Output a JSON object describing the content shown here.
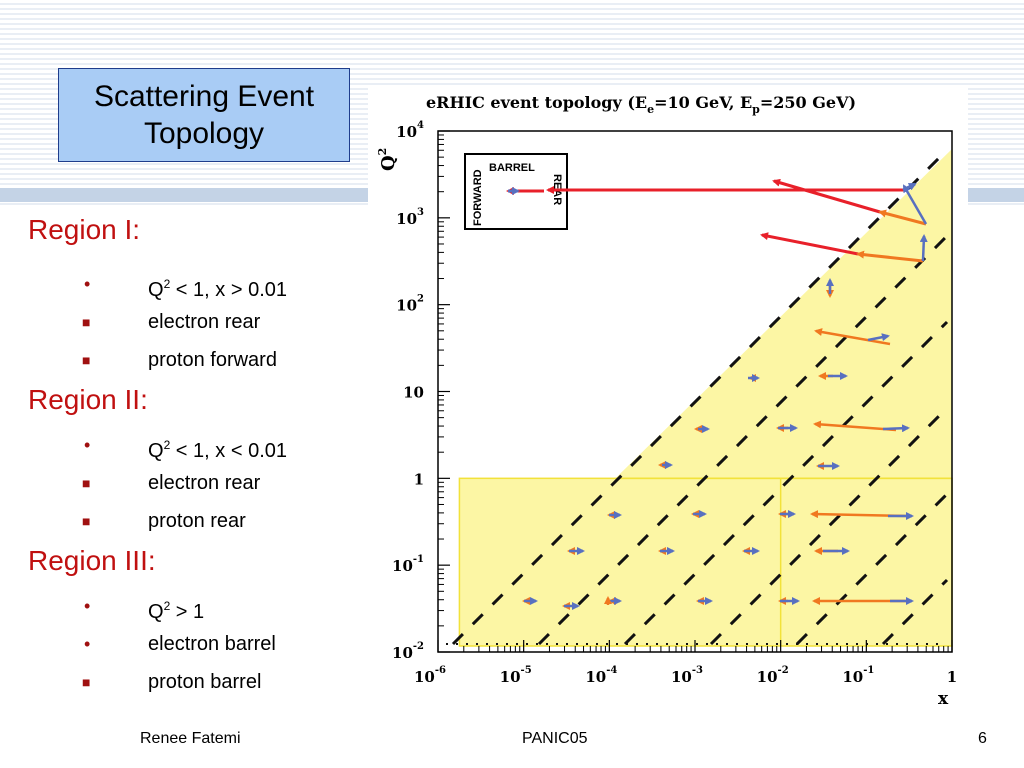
{
  "slide": {
    "title_line1": "Scattering Event",
    "title_line2": "Topology",
    "regions": [
      {
        "heading": "Region I:",
        "bullets": [
          {
            "type": "dot",
            "q": "Q",
            "sup": "2",
            "rest": " < 1,  x > 0.01"
          },
          {
            "type": "square",
            "text": "electron rear"
          },
          {
            "type": "square",
            "text": "proton forward"
          }
        ]
      },
      {
        "heading": "Region II:",
        "bullets": [
          {
            "type": "dot",
            "q": "Q",
            "sup": "2",
            "rest": " < 1, x < 0.01"
          },
          {
            "type": "square",
            "text": "electron rear"
          },
          {
            "type": "square",
            "text": "proton rear"
          }
        ]
      },
      {
        "heading": "Region III:",
        "bullets": [
          {
            "type": "dot",
            "q": "Q",
            "sup": "2",
            "rest": " > 1"
          },
          {
            "type": "dot",
            "text": "electron barrel"
          },
          {
            "type": "square",
            "text": "proton barrel"
          }
        ]
      }
    ],
    "bullet_marks": {
      "dot": "•",
      "square": "■"
    },
    "footer": {
      "author": "Renee Fatemi",
      "conference": "PANIC05",
      "page": "6"
    }
  },
  "figure": {
    "title_pre": "eRHIC event topology (E",
    "title_sub_e": "e",
    "title_mid": "=10 GeV, E",
    "title_sub_p": "p",
    "title_post": "=250 GeV)",
    "y_axis_label_base": "Q",
    "y_axis_label_sup": "2",
    "x_axis_label": "x",
    "y_ticks": [
      {
        "base": "10",
        "exp": "4"
      },
      {
        "base": "10",
        "exp": "3"
      },
      {
        "base": "10",
        "exp": "2"
      },
      {
        "base": "10",
        "exp": ""
      },
      {
        "base": "1",
        "exp": ""
      },
      {
        "base": "10",
        "exp": "-1"
      },
      {
        "base": "10",
        "exp": "-2"
      }
    ],
    "x_ticks": [
      {
        "base": "10",
        "exp": "-6"
      },
      {
        "base": "10",
        "exp": "-5"
      },
      {
        "base": "10",
        "exp": "-4"
      },
      {
        "base": "10",
        "exp": "-3"
      },
      {
        "base": "10",
        "exp": "-2"
      },
      {
        "base": "10",
        "exp": "-1"
      },
      {
        "base": "1",
        "exp": ""
      }
    ],
    "legend": {
      "forward": "FORWARD",
      "barrel": "BARREL",
      "rear": "REAR"
    },
    "colors": {
      "kinematic_region": "#fcf6a4",
      "region_outline": "#f2e23a",
      "electron": "#e8202a",
      "electron_orange": "#f07820",
      "proton": "#5870c0",
      "dash": "#111111"
    }
  }
}
